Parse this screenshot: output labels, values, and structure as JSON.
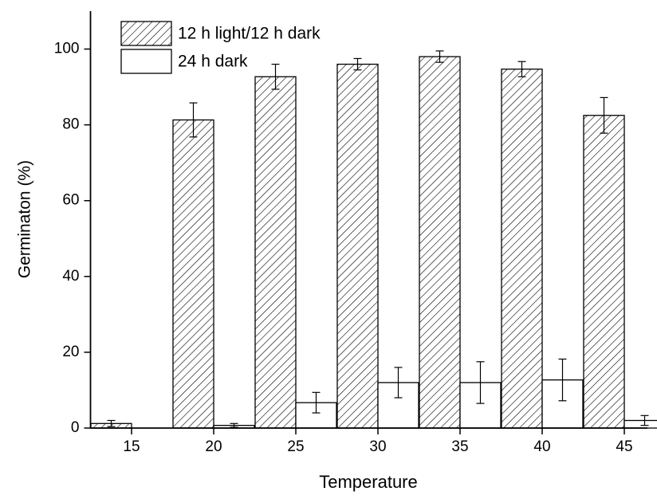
{
  "chart_data": {
    "type": "bar",
    "x_label": "Temperature",
    "y_label": "Germinaton (%)",
    "categories": [
      "15",
      "20",
      "25",
      "30",
      "35",
      "40",
      "45"
    ],
    "series": [
      {
        "name": "12 h light/12 h dark",
        "color": "#000000",
        "hatch": true,
        "values": [
          1.2,
          81.3,
          92.7,
          96,
          98,
          94.7,
          82.5
        ],
        "errors": [
          0.8,
          4.5,
          3.3,
          1.5,
          1.5,
          2,
          4.7
        ]
      },
      {
        "name": "24 h dark",
        "color": "#ffffff",
        "hatch": false,
        "values": [
          0,
          0.7,
          6.7,
          12,
          12,
          12.7,
          2
        ],
        "errors": [
          null,
          0.5,
          2.7,
          4,
          5.5,
          5.5,
          1.3
        ]
      }
    ],
    "ylim": [
      0,
      110
    ],
    "yticks": [
      0,
      20,
      40,
      60,
      80,
      100
    ],
    "legend": "upper-left",
    "grid": false
  }
}
